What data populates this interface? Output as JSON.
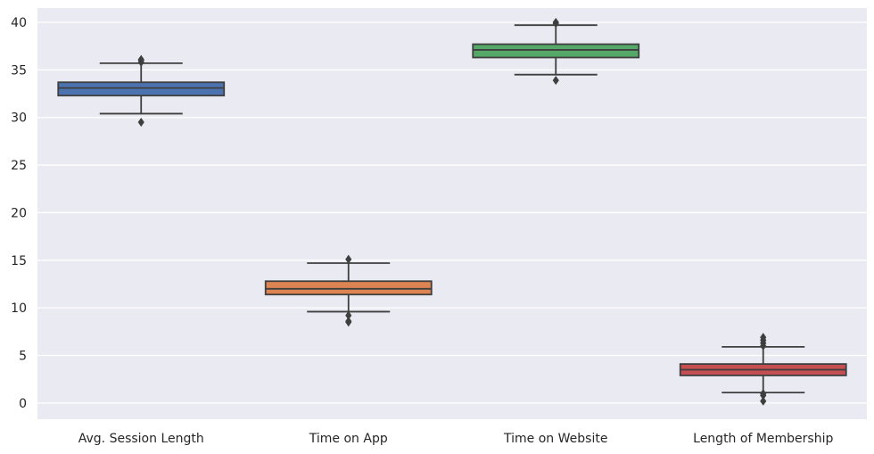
{
  "chart_data": {
    "type": "box",
    "title": "",
    "xlabel": "",
    "ylabel": "",
    "ylim": [
      -1.7,
      41.5
    ],
    "yticks": [
      0,
      5,
      10,
      15,
      20,
      25,
      30,
      35,
      40
    ],
    "grid": true,
    "categories": [
      "Avg. Session Length",
      "Time on App",
      "Time on Website",
      "Length of Membership"
    ],
    "series": [
      {
        "whisker_low": 30.4,
        "q1": 32.3,
        "median": 33.1,
        "q3": 33.7,
        "whisker_high": 35.7,
        "outliers": [
          29.5,
          35.8,
          36.0,
          36.1
        ],
        "color": "#4c72b0"
      },
      {
        "whisker_low": 9.6,
        "q1": 11.4,
        "median": 12.0,
        "q3": 12.8,
        "whisker_high": 14.7,
        "outliers": [
          8.5,
          8.6,
          9.2,
          15.1
        ],
        "color": "#dd8452"
      },
      {
        "whisker_low": 34.5,
        "q1": 36.3,
        "median": 37.1,
        "q3": 37.7,
        "whisker_high": 39.7,
        "outliers": [
          33.9,
          39.9,
          40.0
        ],
        "color": "#55a868"
      },
      {
        "whisker_low": 1.1,
        "q1": 2.9,
        "median": 3.5,
        "q3": 4.1,
        "whisker_high": 5.9,
        "outliers": [
          0.2,
          0.8,
          1.0,
          6.0,
          6.3,
          6.6,
          6.9
        ],
        "color": "#c44e52"
      }
    ],
    "style": {
      "plot_background": "#eaeaf2",
      "grid_color": "#ffffff",
      "line_color": "#3f3f3f",
      "text_color": "#262626"
    }
  }
}
